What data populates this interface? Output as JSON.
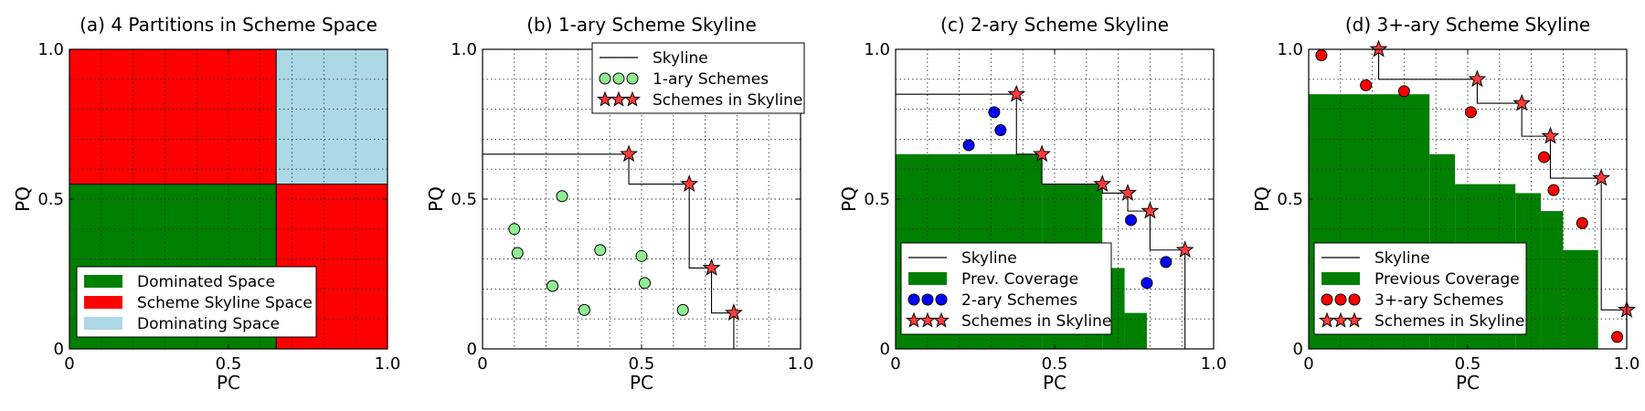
{
  "figure": {
    "xlabel": "PC",
    "ylabel": "PQ"
  },
  "colors": {
    "dominated": "#008000",
    "skyline_space": "#ff0000",
    "dominating": "#add8e6",
    "one_ary": "#90ee90",
    "two_ary": "#0000ff",
    "three_ary": "#ff0000",
    "star": "#ff3b3b",
    "grid": "#333333"
  },
  "chart_data": [
    {
      "type": "area",
      "title": "(a) 4 Partitions in Scheme Space",
      "xlabel": "PC",
      "ylabel": "PQ",
      "xlim": [
        0,
        1
      ],
      "ylim": [
        0,
        1
      ],
      "xticks": [
        "0",
        "0.5",
        "1.0"
      ],
      "yticks": [
        "0",
        "0.5",
        "1.0"
      ],
      "grid": true,
      "legend_position": "bottom-left",
      "skyline_point": {
        "x": 0.65,
        "y": 0.55
      },
      "regions": [
        {
          "name": "Dominated Space",
          "color": "#008000"
        },
        {
          "name": "Scheme Skyline Space",
          "color": "#ff0000"
        },
        {
          "name": "Dominating Space",
          "color": "#add8e6"
        }
      ]
    },
    {
      "type": "scatter",
      "title": "(b) 1-ary Scheme Skyline",
      "xlabel": "PC",
      "ylabel": "PQ",
      "xlim": [
        0,
        1
      ],
      "ylim": [
        0,
        1
      ],
      "xticks": [
        "0",
        "0.5",
        "1.0"
      ],
      "yticks": [
        "0",
        "0.5",
        "1.0"
      ],
      "grid": true,
      "legend_position": "top-right",
      "legend": [
        "Skyline",
        "1-ary Schemes",
        "Schemes in Skyline"
      ],
      "schemes": {
        "name": "1-ary Schemes",
        "x": [
          0.1,
          0.11,
          0.22,
          0.25,
          0.32,
          0.37,
          0.5,
          0.51,
          0.63
        ],
        "y": [
          0.4,
          0.32,
          0.21,
          0.51,
          0.13,
          0.33,
          0.31,
          0.22,
          0.13
        ]
      },
      "skyline": {
        "name": "Schemes in Skyline",
        "x": [
          0.46,
          0.65,
          0.72,
          0.79
        ],
        "y": [
          0.65,
          0.55,
          0.27,
          0.12
        ]
      }
    },
    {
      "type": "scatter",
      "title": "(c) 2-ary Scheme Skyline",
      "xlabel": "PC",
      "ylabel": "PQ",
      "xlim": [
        0,
        1
      ],
      "ylim": [
        0,
        1
      ],
      "xticks": [
        "0",
        "0.5",
        "1.0"
      ],
      "yticks": [
        "0",
        "0.5",
        "1.0"
      ],
      "grid": true,
      "legend_position": "bottom-left",
      "legend": [
        "Skyline",
        "Prev. Coverage",
        "2-ary Schemes",
        "Schemes in Skyline"
      ],
      "coverage": {
        "name": "Prev. Coverage",
        "x": [
          0.46,
          0.65,
          0.72,
          0.79
        ],
        "y": [
          0.65,
          0.55,
          0.27,
          0.12
        ]
      },
      "schemes": {
        "name": "2-ary Schemes",
        "x": [
          0.23,
          0.31,
          0.33,
          0.74,
          0.79,
          0.85
        ],
        "y": [
          0.68,
          0.79,
          0.73,
          0.43,
          0.22,
          0.29
        ]
      },
      "skyline": {
        "name": "Schemes in Skyline",
        "x": [
          0.38,
          0.46,
          0.65,
          0.73,
          0.8,
          0.91
        ],
        "y": [
          0.85,
          0.65,
          0.55,
          0.52,
          0.46,
          0.33
        ]
      }
    },
    {
      "type": "scatter",
      "title": "(d) 3+-ary Scheme Skyline",
      "xlabel": "PC",
      "ylabel": "PQ",
      "xlim": [
        0,
        1
      ],
      "ylim": [
        0,
        1
      ],
      "xticks": [
        "0",
        "0.5",
        "1.0"
      ],
      "yticks": [
        "0",
        "0.5",
        "1.0"
      ],
      "grid": true,
      "legend_position": "bottom-left",
      "legend": [
        "Skyline",
        "Previous Coverage",
        "3+-ary Schemes",
        "Schemes in Skyline"
      ],
      "coverage": {
        "name": "Previous Coverage",
        "x": [
          0.38,
          0.46,
          0.65,
          0.73,
          0.8,
          0.91
        ],
        "y": [
          0.85,
          0.65,
          0.55,
          0.52,
          0.46,
          0.33
        ]
      },
      "schemes": {
        "name": "3+-ary Schemes",
        "x": [
          0.04,
          0.18,
          0.3,
          0.51,
          0.74,
          0.77,
          0.86,
          0.97
        ],
        "y": [
          0.98,
          0.88,
          0.86,
          0.79,
          0.64,
          0.53,
          0.42,
          0.04
        ]
      },
      "skyline": {
        "name": "Schemes in Skyline",
        "x": [
          0.22,
          0.53,
          0.67,
          0.76,
          0.92,
          1.0
        ],
        "y": [
          1.0,
          0.9,
          0.82,
          0.71,
          0.57,
          0.13
        ]
      }
    }
  ]
}
